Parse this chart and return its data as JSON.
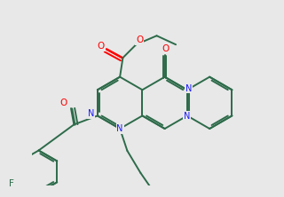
{
  "bg": "#e8e8e8",
  "bc": "#2d6b4a",
  "nc": "#1a1aff",
  "oc": "#ff0000",
  "lw": 1.4,
  "lw_thin": 1.0
}
